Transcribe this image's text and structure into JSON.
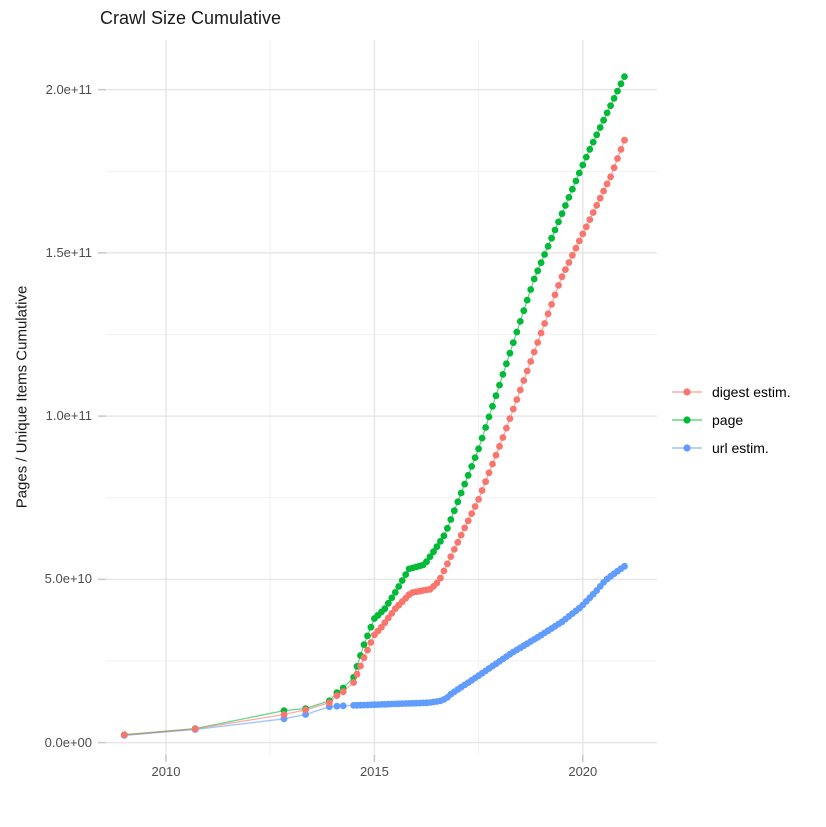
{
  "chart_data": {
    "type": "scatter",
    "title": "Crawl Size Cumulative",
    "ylabel": "Pages / Unique Items Cumulative",
    "xlabel": "",
    "value_unit": "1e9 pages / unique items (cumulative)",
    "x_domain": [
      2008.56,
      2021.78
    ],
    "y_domain_e9": [
      -3.8,
      215.2
    ],
    "grid": {
      "major_color": "#e7e7e7",
      "minor_color": "#f1f1f1",
      "tick_color": "#c9c9c9"
    },
    "x_ticks": {
      "major": [
        2010,
        2015,
        2020
      ],
      "labels": [
        "2010",
        "2015",
        "2020"
      ],
      "minor": [
        2012.5,
        2017.5
      ]
    },
    "y_ticks": {
      "major_e9": [
        0,
        50,
        100,
        150,
        200
      ],
      "labels": [
        "0.0e+00",
        "5.0e+10",
        "1.0e+11",
        "1.5e+11",
        "2.0e+11"
      ],
      "minor_e9": [
        25,
        75,
        125,
        175
      ]
    },
    "sample_x": {
      "sparse": [
        2009.0,
        2010.7,
        2012.83,
        2013.35,
        2013.92,
        2014.1,
        2014.25
      ],
      "dense_from": 2014.5,
      "dense_to": 2021.0,
      "step_years": 0.083333
    },
    "series": [
      {
        "name": "url estim.",
        "color": "#619CFF",
        "anchors_e9": [
          [
            2009.0,
            2.2
          ],
          [
            2010.7,
            4.0
          ],
          [
            2012.83,
            7.3
          ],
          [
            2013.35,
            8.6
          ],
          [
            2013.92,
            11.0
          ],
          [
            2014.3,
            11.3
          ],
          [
            2015.0,
            11.6
          ],
          [
            2015.6,
            11.9
          ],
          [
            2016.3,
            12.2
          ],
          [
            2016.6,
            12.8
          ],
          [
            2016.72,
            13.5
          ],
          [
            2016.85,
            15.0
          ],
          [
            2017.5,
            20.5
          ],
          [
            2018.3,
            27.5
          ],
          [
            2019.0,
            32.9
          ],
          [
            2019.5,
            37.0
          ],
          [
            2019.95,
            41.5
          ],
          [
            2020.3,
            46.1
          ],
          [
            2020.55,
            49.8
          ],
          [
            2020.8,
            52.2
          ],
          [
            2021.0,
            54.0
          ]
        ]
      },
      {
        "name": "page",
        "color": "#00BA38",
        "anchors_e9": [
          [
            2009.0,
            2.4
          ],
          [
            2010.7,
            4.3
          ],
          [
            2012.83,
            9.8
          ],
          [
            2013.35,
            10.4
          ],
          [
            2013.92,
            12.8
          ],
          [
            2014.1,
            15.3
          ],
          [
            2014.33,
            17.5
          ],
          [
            2014.5,
            20.0
          ],
          [
            2014.75,
            30.0
          ],
          [
            2015.0,
            38.0
          ],
          [
            2015.25,
            41.0
          ],
          [
            2015.5,
            46.0
          ],
          [
            2015.83,
            53.2
          ],
          [
            2016.2,
            54.5
          ],
          [
            2016.5,
            60.0
          ],
          [
            2016.7,
            64.0
          ],
          [
            2017.5,
            90.0
          ],
          [
            2018.83,
            141.9
          ],
          [
            2019.88,
            173.4
          ],
          [
            2020.14,
            181.0
          ],
          [
            2021.0,
            204.0
          ]
        ]
      },
      {
        "name": "digest estim.",
        "color": "#F8766D",
        "anchors_e9": [
          [
            2009.0,
            2.4
          ],
          [
            2010.7,
            4.2
          ],
          [
            2012.83,
            8.6
          ],
          [
            2013.35,
            10.0
          ],
          [
            2013.92,
            12.2
          ],
          [
            2014.1,
            14.4
          ],
          [
            2014.33,
            16.2
          ],
          [
            2014.5,
            18.4
          ],
          [
            2014.75,
            26.0
          ],
          [
            2015.0,
            33.0
          ],
          [
            2015.16,
            35.2
          ],
          [
            2015.5,
            41.0
          ],
          [
            2015.88,
            45.9
          ],
          [
            2016.35,
            47.0
          ],
          [
            2016.55,
            49.5
          ],
          [
            2017.1,
            64.0
          ],
          [
            2017.5,
            74.5
          ],
          [
            2018.1,
            94.0
          ],
          [
            2019.47,
            141.9
          ],
          [
            2020.67,
            173.4
          ],
          [
            2021.0,
            184.5
          ]
        ]
      }
    ],
    "legend": {
      "position": "right-middle",
      "order": [
        "digest estim.",
        "page",
        "url estim."
      ]
    },
    "style": {
      "point_radius": 3.4,
      "line_width": 1.3,
      "line_opacity": 0.6
    }
  }
}
